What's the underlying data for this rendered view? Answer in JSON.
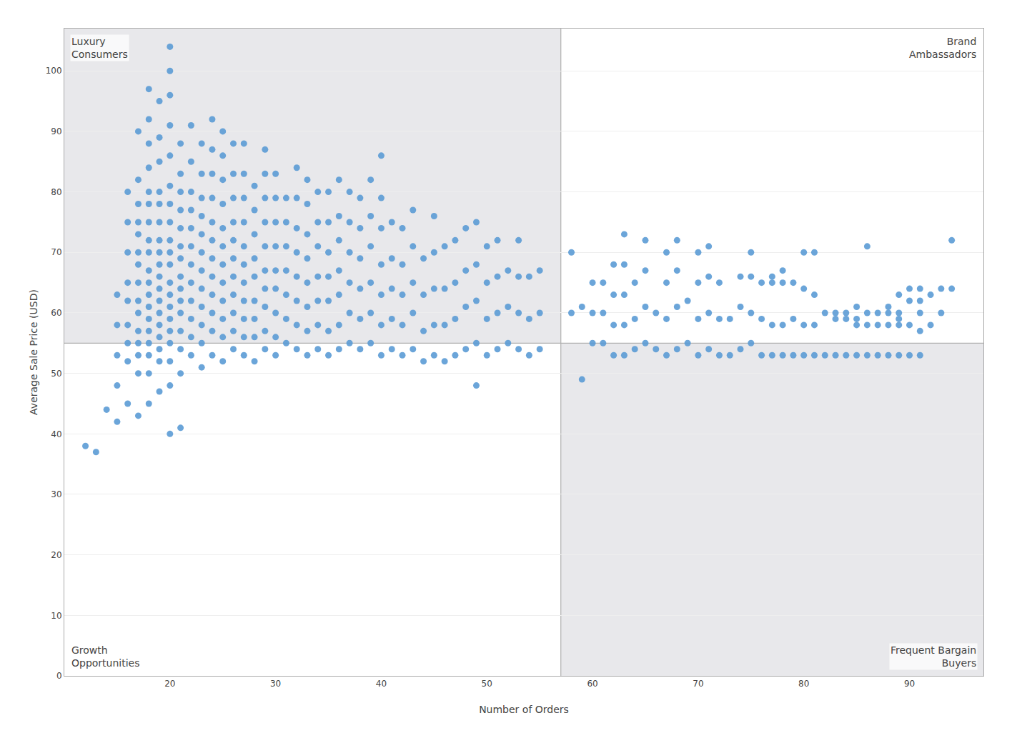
{
  "chart_data": {
    "type": "scatter",
    "xlabel": "Number of Orders",
    "ylabel": "Average Sale Price (USD)",
    "xlim": [
      10,
      97
    ],
    "ylim": [
      0,
      107
    ],
    "xticks": [
      20,
      30,
      40,
      50,
      60,
      70,
      80,
      90
    ],
    "yticks": [
      0,
      10,
      20,
      30,
      40,
      50,
      60,
      70,
      80,
      90,
      100
    ],
    "grid": "y",
    "color": "#5b9bd5",
    "marker": "circle",
    "quadrant_x": 57,
    "quadrant_y": 55,
    "quadrant_color": "#e8e8eb",
    "annotations": [
      {
        "text": "Luxury\nConsumers",
        "position": "top left"
      },
      {
        "text": "Brand\nAmbassadors",
        "position": "top right"
      },
      {
        "text": "Growth\nOpportunities",
        "position": "bottom left"
      },
      {
        "text": "Frequent Bargain\nBuyers",
        "position": "bottom right"
      }
    ],
    "x": [
      12,
      13,
      14,
      15,
      15,
      15,
      15,
      15,
      16,
      16,
      16,
      16,
      16,
      16,
      16,
      16,
      16,
      17,
      17,
      17,
      17,
      17,
      17,
      17,
      17,
      17,
      17,
      17,
      17,
      17,
      17,
      17,
      18,
      18,
      18,
      18,
      18,
      18,
      18,
      18,
      18,
      18,
      18,
      18,
      18,
      18,
      18,
      18,
      18,
      18,
      18,
      19,
      19,
      19,
      19,
      19,
      19,
      19,
      19,
      19,
      19,
      19,
      19,
      19,
      19,
      19,
      19,
      19,
      19,
      20,
      20,
      20,
      20,
      20,
      20,
      20,
      20,
      20,
      20,
      20,
      20,
      20,
      20,
      20,
      20,
      20,
      20,
      20,
      20,
      21,
      21,
      21,
      21,
      21,
      21,
      21,
      21,
      21,
      21,
      21,
      21,
      21,
      21,
      21,
      22,
      22,
      22,
      22,
      22,
      22,
      22,
      22,
      22,
      22,
      22,
      22,
      23,
      23,
      23,
      23,
      23,
      23,
      23,
      23,
      23,
      23,
      23,
      23,
      24,
      24,
      24,
      24,
      24,
      24,
      24,
      24,
      24,
      24,
      24,
      24,
      25,
      25,
      25,
      25,
      25,
      25,
      25,
      25,
      25,
      25,
      25,
      25,
      26,
      26,
      26,
      26,
      26,
      26,
      26,
      26,
      26,
      26,
      26,
      27,
      27,
      27,
      27,
      27,
      27,
      27,
      27,
      27,
      27,
      27,
      28,
      28,
      28,
      28,
      28,
      28,
      28,
      28,
      28,
      29,
      29,
      29,
      29,
      29,
      29,
      29,
      29,
      29,
      29,
      30,
      30,
      30,
      30,
      30,
      30,
      30,
      30,
      30,
      31,
      31,
      31,
      31,
      31,
      31,
      31,
      32,
      32,
      32,
      32,
      32,
      32,
      32,
      32,
      33,
      33,
      33,
      33,
      33,
      33,
      33,
      33,
      34,
      34,
      34,
      34,
      34,
      34,
      34,
      35,
      35,
      35,
      35,
      35,
      35,
      35,
      36,
      36,
      36,
      36,
      36,
      36,
      36,
      37,
      37,
      37,
      37,
      37,
      37,
      38,
      38,
      38,
      38,
      38,
      38,
      39,
      39,
      39,
      39,
      39,
      39,
      40,
      40,
      40,
      40,
      40,
      40,
      40,
      41,
      41,
      41,
      41,
      41,
      42,
      42,
      42,
      42,
      42,
      43,
      43,
      43,
      43,
      43,
      44,
      44,
      44,
      44,
      45,
      45,
      45,
      45,
      45,
      46,
      46,
      46,
      46,
      47,
      47,
      47,
      47,
      48,
      48,
      48,
      48,
      49,
      49,
      49,
      49,
      49,
      50,
      50,
      50,
      50,
      51,
      51,
      51,
      51,
      52,
      52,
      52,
      53,
      53,
      53,
      53,
      54,
      54,
      54,
      55,
      55,
      55,
      58,
      58,
      59,
      59,
      60,
      60,
      60,
      61,
      61,
      61,
      62,
      62,
      62,
      62,
      63,
      63,
      63,
      63,
      63,
      64,
      64,
      64,
      65,
      65,
      65,
      65,
      66,
      66,
      67,
      67,
      67,
      67,
      68,
      68,
      68,
      68,
      69,
      69,
      70,
      70,
      70,
      70,
      71,
      71,
      71,
      71,
      72,
      72,
      72,
      73,
      73,
      74,
      74,
      74,
      75,
      75,
      75,
      75,
      76,
      76,
      76,
      77,
      77,
      77,
      77,
      78,
      78,
      78,
      78,
      79,
      79,
      79,
      80,
      80,
      80,
      80,
      81,
      81,
      81,
      81,
      82,
      82,
      83,
      83,
      83,
      84,
      84,
      84,
      85,
      85,
      85,
      85,
      86,
      86,
      86,
      86,
      87,
      87,
      87,
      88,
      88,
      88,
      88,
      89,
      89,
      89,
      89,
      89,
      90,
      90,
      90,
      90,
      91,
      91,
      91,
      91,
      91,
      92,
      92,
      93,
      93,
      94,
      94
    ],
    "values": [
      38,
      37,
      44,
      42,
      48,
      53,
      58,
      63,
      45,
      52,
      55,
      58,
      62,
      65,
      70,
      75,
      80,
      43,
      50,
      53,
      55,
      57,
      60,
      62,
      65,
      68,
      70,
      73,
      75,
      78,
      82,
      90,
      45,
      50,
      53,
      55,
      57,
      59,
      61,
      63,
      65,
      67,
      70,
      72,
      75,
      78,
      80,
      84,
      88,
      92,
      97,
      47,
      52,
      54,
      56,
      58,
      60,
      62,
      64,
      66,
      68,
      70,
      72,
      75,
      78,
      80,
      85,
      89,
      95,
      40,
      48,
      52,
      55,
      57,
      59,
      61,
      63,
      65,
      68,
      70,
      72,
      75,
      78,
      81,
      86,
      91,
      96,
      100,
      104,
      41,
      50,
      54,
      57,
      60,
      62,
      64,
      66,
      69,
      71,
      74,
      77,
      80,
      83,
      88,
      53,
      56,
      59,
      62,
      65,
      68,
      71,
      74,
      77,
      80,
      85,
      91,
      51,
      55,
      58,
      61,
      64,
      67,
      70,
      73,
      76,
      79,
      83,
      88,
      53,
      57,
      60,
      63,
      66,
      69,
      72,
      75,
      79,
      83,
      87,
      92,
      52,
      56,
      59,
      62,
      65,
      68,
      71,
      74,
      78,
      82,
      86,
      90,
      54,
      57,
      60,
      63,
      66,
      69,
      72,
      75,
      79,
      83,
      88,
      53,
      56,
      59,
      62,
      65,
      68,
      71,
      75,
      79,
      83,
      88,
      52,
      56,
      59,
      62,
      66,
      69,
      73,
      77,
      81,
      54,
      57,
      61,
      64,
      67,
      71,
      75,
      79,
      83,
      87,
      53,
      56,
      60,
      64,
      67,
      71,
      75,
      79,
      83,
      55,
      59,
      63,
      67,
      71,
      75,
      79,
      54,
      58,
      62,
      66,
      70,
      74,
      79,
      84,
      53,
      57,
      61,
      65,
      69,
      73,
      78,
      82,
      54,
      58,
      62,
      66,
      71,
      75,
      80,
      53,
      57,
      62,
      66,
      70,
      75,
      80,
      54,
      58,
      63,
      67,
      72,
      76,
      82,
      55,
      60,
      65,
      70,
      75,
      80,
      54,
      59,
      64,
      69,
      74,
      79,
      55,
      60,
      65,
      71,
      76,
      82,
      53,
      58,
      63,
      68,
      74,
      79,
      86,
      54,
      59,
      64,
      69,
      75,
      53,
      58,
      63,
      68,
      74,
      54,
      60,
      65,
      71,
      77,
      52,
      57,
      63,
      69,
      53,
      58,
      64,
      70,
      76,
      52,
      58,
      64,
      71,
      53,
      59,
      65,
      72,
      54,
      61,
      67,
      74,
      48,
      55,
      62,
      68,
      75,
      53,
      59,
      65,
      71,
      54,
      60,
      66,
      72,
      55,
      61,
      67,
      54,
      60,
      66,
      72,
      53,
      59,
      66,
      54,
      60,
      67,
      60,
      70,
      49,
      61,
      55,
      60,
      65,
      55,
      60,
      65,
      53,
      58,
      63,
      68,
      53,
      58,
      63,
      68,
      73,
      54,
      59,
      65,
      55,
      61,
      67,
      72,
      54,
      60,
      53,
      59,
      65,
      70,
      54,
      61,
      67,
      72,
      55,
      62,
      53,
      59,
      65,
      70,
      54,
      60,
      66,
      71,
      53,
      59,
      65,
      53,
      59,
      54,
      61,
      66,
      55,
      60,
      66,
      70,
      53,
      59,
      65,
      53,
      58,
      65,
      66,
      53,
      58,
      65,
      67,
      53,
      59,
      65,
      53,
      58,
      64,
      70,
      53,
      58,
      63,
      70,
      53,
      60,
      53,
      59,
      60,
      53,
      59,
      60,
      53,
      58,
      59,
      61,
      53,
      58,
      60,
      71,
      53,
      58,
      60,
      53,
      58,
      60,
      61,
      53,
      58,
      59,
      60,
      63,
      53,
      58,
      62,
      64,
      53,
      57,
      60,
      62,
      64,
      58,
      63,
      60,
      64,
      64,
      72
    ]
  }
}
